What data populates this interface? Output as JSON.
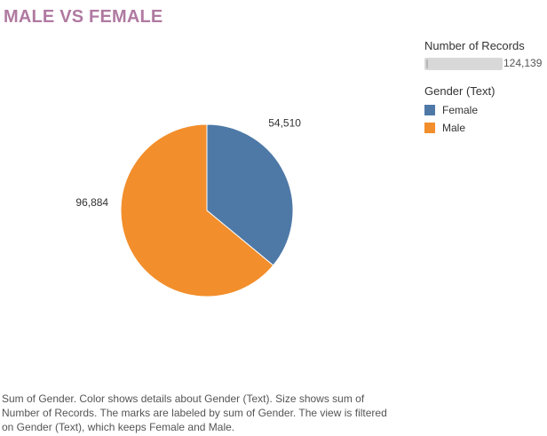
{
  "title": "MALE VS FEMALE",
  "chart_data": {
    "type": "pie",
    "title": "MALE VS FEMALE",
    "categories": [
      "Female",
      "Male"
    ],
    "values": [
      54510,
      96884
    ],
    "labels": [
      "54,510",
      "96,884"
    ],
    "colors": [
      "#4e79a7",
      "#f28e2b"
    ],
    "legend_placement": "right"
  },
  "legend": {
    "size_heading": "Number of Records",
    "size_value": "124,139",
    "color_heading": "Gender (Text)",
    "items": [
      {
        "label": "Female",
        "color": "#4e79a7"
      },
      {
        "label": "Male",
        "color": "#f28e2b"
      }
    ]
  },
  "caption": {
    "line1": "Sum of Gender.  Color shows details about Gender (Text).  Size shows sum of",
    "line2": "Number of Records.  The marks are labeled by sum of Gender. The view is filtered",
    "line3": "on Gender (Text), which keeps Female and Male."
  }
}
